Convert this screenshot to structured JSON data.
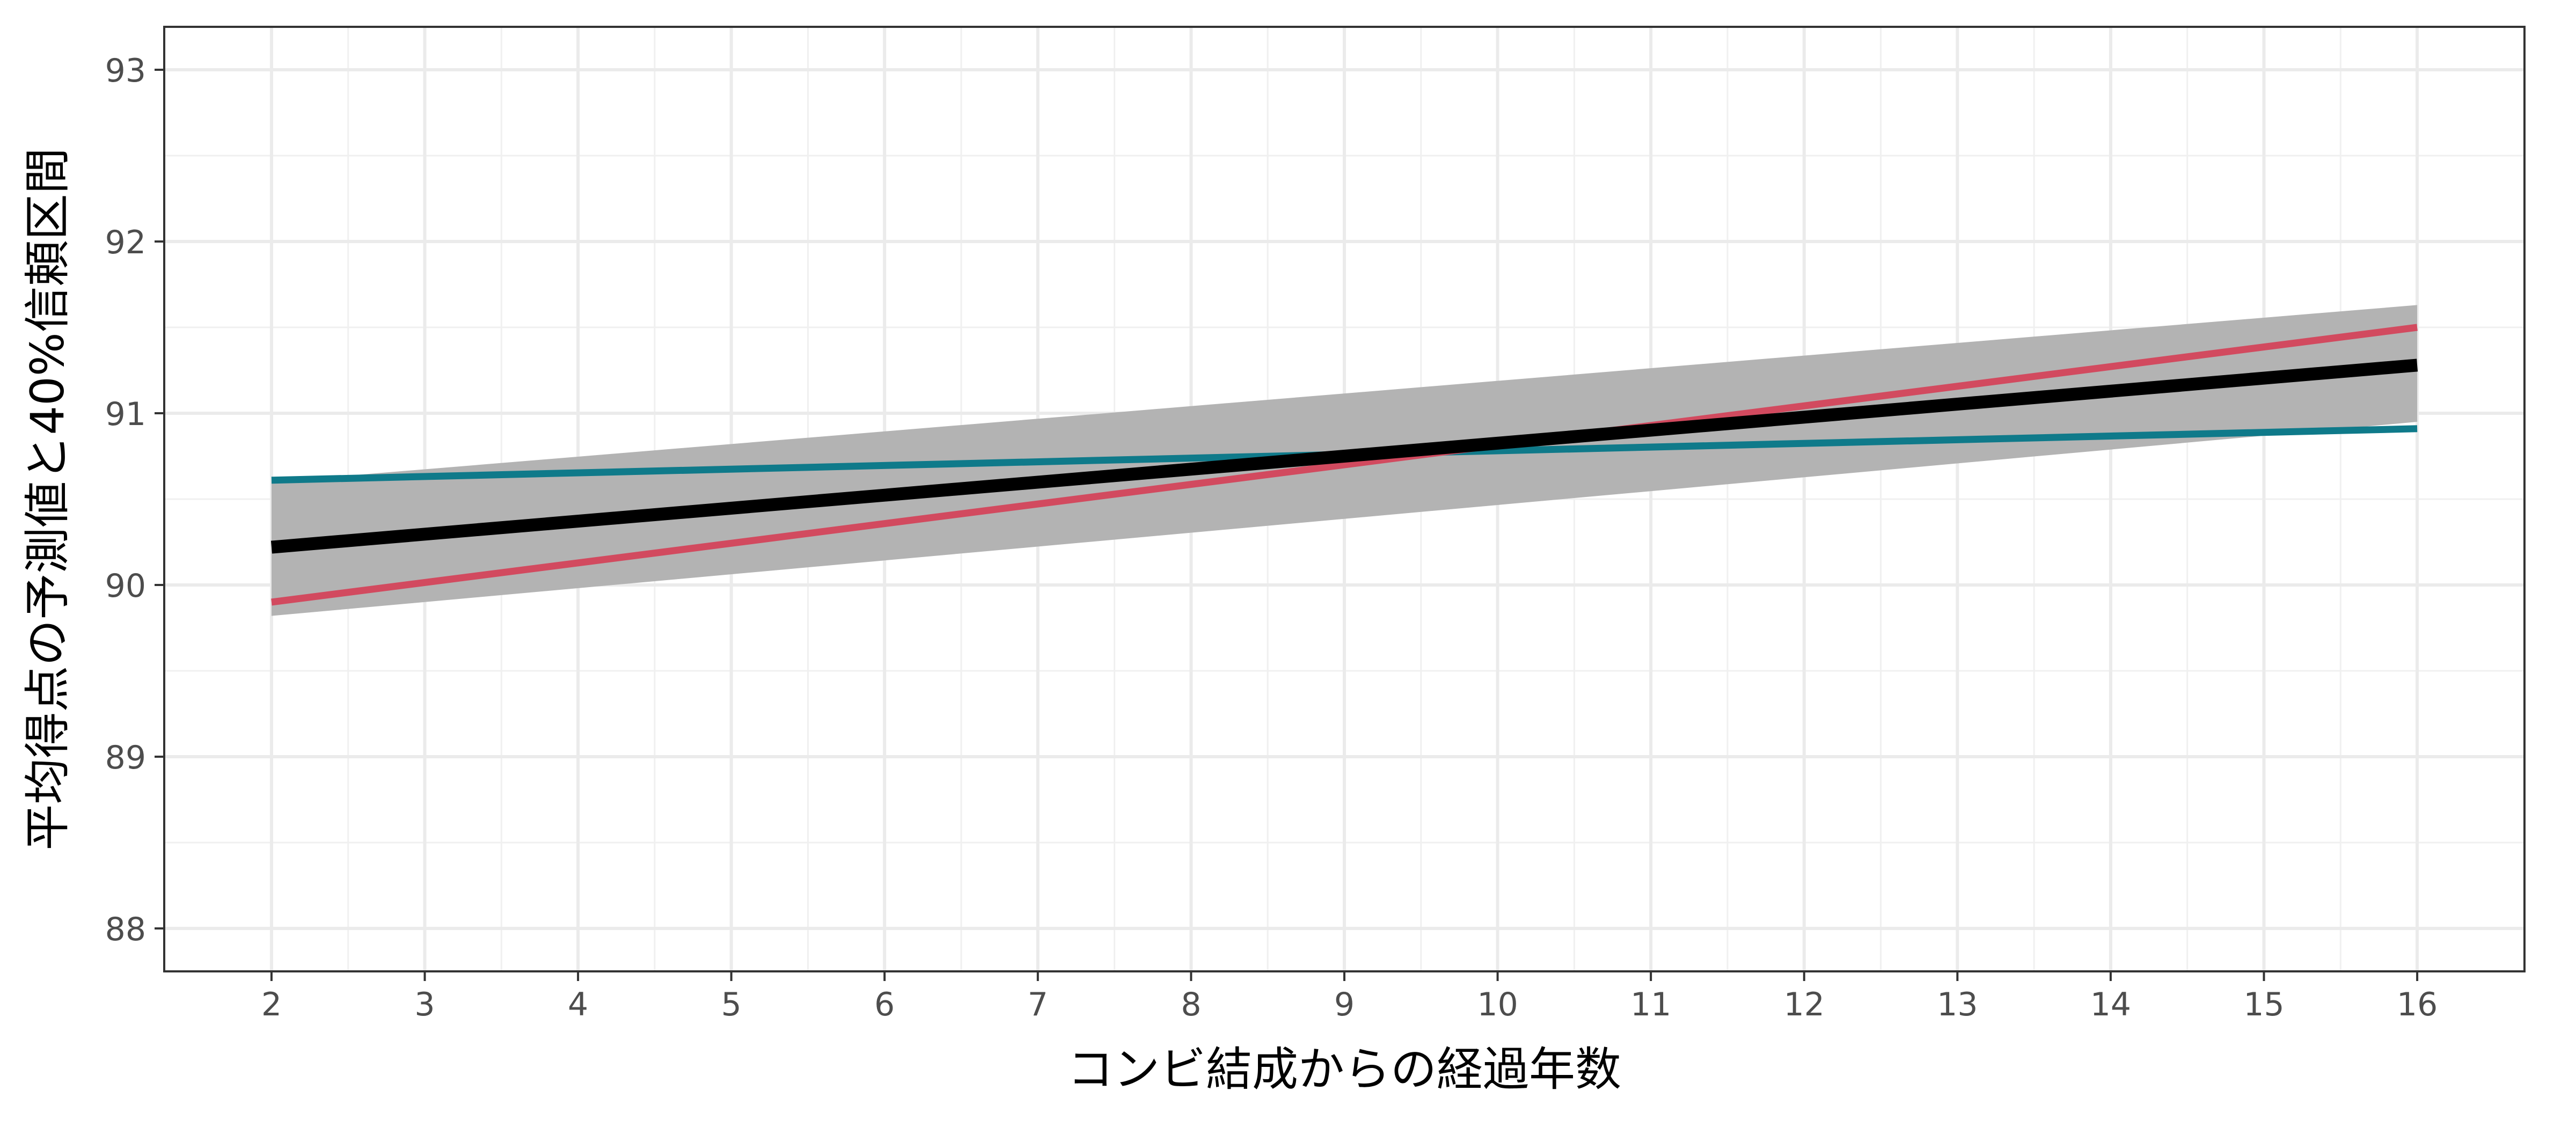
{
  "chart_data": {
    "type": "line",
    "title": "",
    "xlabel": "コンビ結成からの経過年数",
    "ylabel": "平均得点の予測値と40%信頼区間",
    "xlim": [
      1.3,
      16.7
    ],
    "ylim": [
      87.75,
      93.25
    ],
    "x_ticks": [
      2,
      3,
      4,
      5,
      6,
      7,
      8,
      9,
      10,
      11,
      12,
      13,
      14,
      15,
      16
    ],
    "x_tick_labels": [
      "2",
      "3",
      "4",
      "5",
      "6",
      "7",
      "8",
      "9",
      "10",
      "11",
      "12",
      "13",
      "14",
      "15",
      "16"
    ],
    "y_ticks": [
      88,
      89,
      90,
      91,
      92,
      93
    ],
    "y_tick_labels": [
      "88",
      "89",
      "90",
      "91",
      "92",
      "93"
    ],
    "grid": true,
    "confidence_band": {
      "x": [
        2,
        16
      ],
      "lower": [
        89.82,
        90.95
      ],
      "mid": [
        90.2,
        91.27
      ],
      "upper": [
        90.6,
        91.63
      ],
      "color": "#b3b3b3"
    },
    "series": [
      {
        "x": [
          2,
          16
        ],
        "values": [
          90.61,
          90.91
        ],
        "color": "#0f7a8a",
        "width": "medium"
      },
      {
        "x": [
          2,
          16
        ],
        "values": [
          89.9,
          91.5
        ],
        "color": "#d24a5f",
        "width": "medium"
      },
      {
        "x": [
          2,
          16
        ],
        "values": [
          90.22,
          91.28
        ],
        "color": "#000000",
        "width": "thick"
      }
    ],
    "legend": "none"
  }
}
